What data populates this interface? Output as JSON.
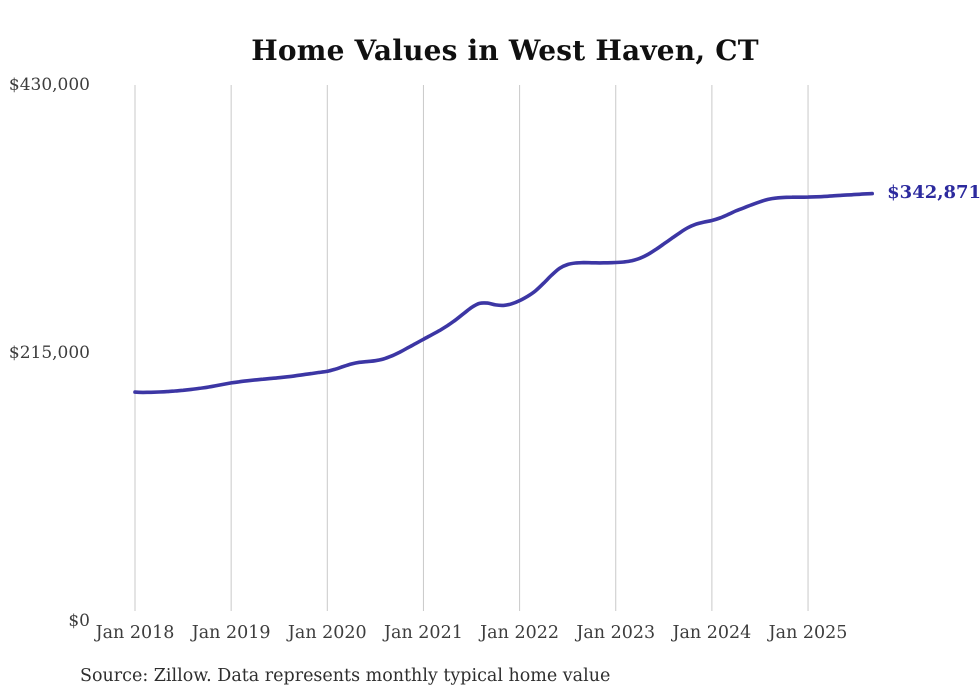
{
  "chart_data": {
    "type": "line",
    "title": "Home Values in West Haven, CT",
    "xlabel": "",
    "ylabel": "",
    "x_tick_labels": [
      "Jan 2018",
      "Jan 2019",
      "Jan 2020",
      "Jan 2021",
      "Jan 2022",
      "Jan 2023",
      "Jan 2024",
      "Jan 2025"
    ],
    "y_tick_labels": [
      "$0",
      "$215,000",
      "$430,000"
    ],
    "y_tick_values": [
      0,
      215000,
      430000
    ],
    "ylim": [
      0,
      430000
    ],
    "x_interval": "monthly",
    "x_start_label": "Jan 2018",
    "grid": "vertical-only",
    "legend": "none",
    "series": [
      {
        "name": "Monthly typical home value",
        "values_usd": [
          183600,
          183400,
          183500,
          183700,
          184000,
          184500,
          185100,
          185800,
          186600,
          187500,
          188600,
          189800,
          191000,
          191900,
          192700,
          193400,
          194000,
          194600,
          195200,
          195900,
          196700,
          197600,
          198500,
          199400,
          200300,
          202000,
          204200,
          206200,
          207500,
          208100,
          208800,
          210200,
          212500,
          215500,
          219000,
          222500,
          226000,
          229500,
          233000,
          237000,
          241500,
          246500,
          251500,
          254800,
          255000,
          253600,
          253200,
          254500,
          257000,
          260500,
          265000,
          271000,
          277500,
          283000,
          286000,
          287200,
          287500,
          287400,
          287300,
          287400,
          287600,
          288000,
          289000,
          291000,
          294000,
          298000,
          302500,
          307000,
          311500,
          315500,
          318300,
          320000,
          321300,
          323300,
          326000,
          329000,
          331500,
          334000,
          336300,
          338200,
          339300,
          339800,
          340000,
          340000,
          340100,
          340300,
          340600,
          341000,
          341400,
          341800,
          342200,
          342600,
          342871
        ]
      }
    ],
    "end_label": "$342,871",
    "end_value": 342871,
    "source_note": "Source: Zillow. Data represents monthly typical home value",
    "colors": {
      "line": "#3c36a4",
      "end_label": "#2c2a9e",
      "grid": "#c9c9c9",
      "tick_text": "#3d3d3d",
      "title": "#101010",
      "source": "#2e2e2e"
    }
  }
}
